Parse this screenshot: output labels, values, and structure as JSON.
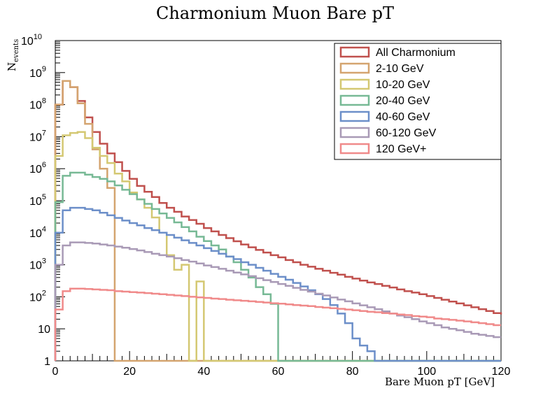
{
  "chart_data": {
    "type": "line",
    "step": true,
    "title": "Charmonium Muon Bare pT",
    "xlabel": "Bare Muon pT [GeV]",
    "ylabel": "N",
    "ylabel_sub": "events",
    "xlim": [
      0,
      120
    ],
    "ylim": [
      1,
      10000000000
    ],
    "yscale": "log",
    "grid": false,
    "legend_position": "top-right",
    "x_ticks": [
      "0",
      "20",
      "40",
      "60",
      "80",
      "100",
      "120"
    ],
    "y_tick_labels": [
      {
        "value": 1,
        "base": "1",
        "exp": ""
      },
      {
        "value": 10,
        "base": "10",
        "exp": ""
      },
      {
        "value": 100,
        "base": "10",
        "exp": "2"
      },
      {
        "value": 1000,
        "base": "10",
        "exp": "3"
      },
      {
        "value": 10000,
        "base": "10",
        "exp": "4"
      },
      {
        "value": 100000,
        "base": "10",
        "exp": "5"
      },
      {
        "value": 1000000,
        "base": "10",
        "exp": "6"
      },
      {
        "value": 10000000,
        "base": "10",
        "exp": "7"
      },
      {
        "value": 100000000,
        "base": "10",
        "exp": "8"
      },
      {
        "value": 1000000000,
        "base": "10",
        "exp": "9"
      },
      {
        "value": 10000000000,
        "base": "10",
        "exp": "10"
      }
    ],
    "x_bins": [
      0,
      2,
      4,
      6,
      8,
      10,
      12,
      14,
      16,
      18,
      20,
      22,
      24,
      26,
      28,
      30,
      32,
      34,
      36,
      38,
      40,
      42,
      44,
      46,
      48,
      50,
      52,
      54,
      56,
      58,
      60,
      62,
      64,
      66,
      68,
      70,
      72,
      74,
      76,
      78,
      80,
      82,
      84,
      86,
      88,
      90,
      92,
      94,
      96,
      98,
      100,
      102,
      104,
      106,
      108,
      110,
      112,
      114,
      116,
      118,
      120
    ],
    "series": [
      {
        "name": "All Charmonium",
        "color": "#c0504d",
        "values": [
          100000000,
          550000000,
          350000000,
          130000000,
          40000000,
          14000000,
          6000000,
          3000000,
          1600000,
          850000,
          480000,
          290000,
          190000,
          130000,
          85000,
          60000,
          45000,
          32000,
          25000,
          19000,
          14000,
          11000,
          8500,
          6800,
          5400,
          4300,
          3500,
          2900,
          2400,
          2000,
          1700,
          1400,
          1200,
          1000,
          870,
          750,
          650,
          560,
          490,
          420,
          370,
          320,
          280,
          250,
          220,
          195,
          170,
          150,
          135,
          120,
          105,
          92,
          81,
          71,
          62,
          54,
          47,
          41,
          36,
          31,
          28
        ]
      },
      {
        "name": "2-10 GeV",
        "color": "#d4a46f",
        "values": [
          100000000,
          550000000,
          350000000,
          110000000,
          25000000,
          4000000,
          1000000,
          250000,
          null,
          null,
          null,
          null,
          null,
          null,
          null,
          null,
          null,
          null,
          null,
          null,
          null,
          null,
          null,
          null,
          null,
          null,
          null,
          null,
          null,
          null,
          null,
          null,
          null,
          null,
          null,
          null,
          null,
          null,
          null,
          null,
          null,
          null,
          null,
          null,
          null,
          null,
          null,
          null,
          null,
          null,
          null,
          null,
          null,
          null,
          null,
          null,
          null,
          null,
          null,
          null
        ]
      },
      {
        "name": "10-20 GeV",
        "color": "#d4c872",
        "values": [
          2500000,
          11000000,
          13000000,
          14000000,
          9000000,
          4500000,
          2500000,
          1500000,
          700000,
          400000,
          180000,
          110000,
          60000,
          30000,
          10000,
          2000,
          700,
          1000,
          null,
          300,
          null,
          null,
          null,
          null,
          null,
          null,
          null,
          null,
          null,
          null,
          null,
          null,
          null,
          null,
          null,
          null,
          null,
          null,
          null,
          null,
          null,
          null,
          null,
          null,
          null,
          null,
          null,
          null,
          null,
          null,
          null,
          null,
          null,
          null,
          null,
          null,
          null,
          null,
          null,
          null
        ]
      },
      {
        "name": "20-40 GeV",
        "color": "#77b995",
        "values": [
          90000,
          600000,
          750000,
          750000,
          650000,
          550000,
          480000,
          400000,
          300000,
          220000,
          160000,
          110000,
          80000,
          55000,
          40000,
          29000,
          21000,
          15000,
          11000,
          7500,
          5500,
          4000,
          3000,
          1800,
          1200,
          700,
          400,
          200,
          120,
          60,
          null,
          null,
          null,
          null,
          null,
          null,
          null,
          null,
          null,
          null,
          null,
          null,
          null,
          null,
          null,
          null,
          null,
          null,
          null,
          null,
          null,
          null,
          null,
          null,
          null,
          null,
          null,
          null,
          null,
          null
        ]
      },
      {
        "name": "40-60 GeV",
        "color": "#6c8fc9",
        "values": [
          10000,
          50000,
          60000,
          60000,
          55000,
          50000,
          42000,
          35000,
          29000,
          24000,
          20000,
          17000,
          14000,
          12000,
          10000,
          8500,
          7000,
          5800,
          4800,
          4000,
          3300,
          2700,
          2200,
          1800,
          1500,
          1200,
          1000,
          800,
          650,
          520,
          420,
          340,
          270,
          210,
          160,
          120,
          85,
          55,
          30,
          15,
          5,
          3,
          2,
          1,
          null,
          null,
          null,
          null,
          null,
          null,
          null,
          null,
          null,
          null,
          null,
          null,
          null,
          null,
          null,
          null
        ]
      },
      {
        "name": "60-120 GeV",
        "color": "#a99ab6",
        "values": [
          1000,
          4000,
          5000,
          5000,
          4800,
          4600,
          4300,
          4000,
          3700,
          3400,
          3100,
          2800,
          2500,
          2200,
          2000,
          1800,
          1600,
          1400,
          1250,
          1100,
          950,
          850,
          750,
          650,
          570,
          500,
          440,
          380,
          330,
          290,
          250,
          220,
          190,
          165,
          145,
          125,
          110,
          95,
          82,
          72,
          62,
          54,
          47,
          41,
          35,
          30,
          26,
          23,
          20,
          17,
          15,
          13,
          11,
          10,
          9,
          8,
          7,
          6.5,
          6,
          5.5
        ]
      },
      {
        "name": "120 GeV+",
        "color": "#f08a8a",
        "values": [
          40,
          150,
          180,
          180,
          175,
          170,
          165,
          160,
          150,
          145,
          140,
          135,
          130,
          125,
          120,
          115,
          110,
          105,
          100,
          96,
          92,
          88,
          85,
          81,
          78,
          75,
          72,
          69,
          66,
          63,
          61,
          58,
          55,
          53,
          51,
          48,
          46,
          44,
          42,
          40,
          38,
          36,
          34,
          33,
          31,
          30,
          28,
          27,
          25,
          24,
          23,
          21,
          20,
          19,
          18,
          17,
          16,
          15,
          14,
          13
        ]
      }
    ]
  }
}
